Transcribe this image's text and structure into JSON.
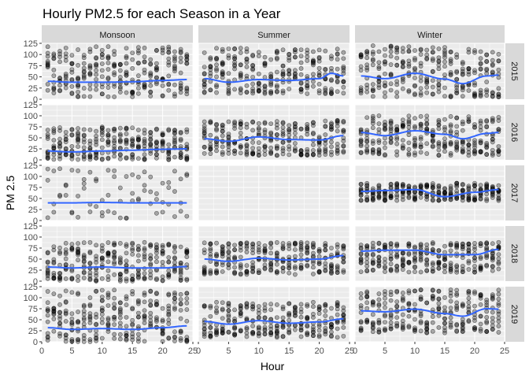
{
  "chart_data": {
    "type": "scatter",
    "title": "Hourly PM2.5 for each Season in a Year",
    "xlabel": "Hour",
    "ylabel": "PM 2.5",
    "xlim": [
      0,
      25
    ],
    "ylim": [
      0,
      125
    ],
    "x_ticks": [
      0,
      5,
      10,
      15,
      20,
      25
    ],
    "y_ticks": [
      0,
      25,
      50,
      75,
      100,
      125
    ],
    "x_tick_labels": [
      "0",
      "5",
      "10",
      "15",
      "20",
      "25"
    ],
    "y_tick_labels": [
      "0",
      "25",
      "50",
      "75",
      "100",
      "125"
    ],
    "column_facets": [
      "Monsoon",
      "Summer",
      "Winter"
    ],
    "row_facets": [
      "2015",
      "2016",
      "2017",
      "2018",
      "2019"
    ],
    "colors": {
      "panel_bg": "#ebebeb",
      "grid_major": "#ffffff",
      "strip_bg": "#d9d9d9",
      "point": "#000000",
      "smooth": "#3366ff"
    },
    "panels": [
      {
        "season": "Monsoon",
        "year": "2015",
        "has_data": true,
        "pm_range": [
          5,
          118
        ],
        "smooth_x": [
          1,
          5,
          10,
          15,
          20,
          24
        ],
        "smooth_y": [
          40,
          38,
          38,
          39,
          42,
          44
        ]
      },
      {
        "season": "Summer",
        "year": "2015",
        "has_data": true,
        "pm_range": [
          12,
          115
        ],
        "smooth_x": [
          1,
          5,
          10,
          15,
          20,
          22,
          24
        ],
        "smooth_y": [
          46,
          38,
          44,
          42,
          46,
          58,
          52
        ]
      },
      {
        "season": "Winter",
        "year": "2015",
        "has_data": true,
        "pm_range": [
          5,
          120
        ],
        "smooth_x": [
          1,
          5,
          10,
          15,
          18,
          22,
          24
        ],
        "smooth_y": [
          52,
          46,
          58,
          45,
          35,
          52,
          54
        ]
      },
      {
        "season": "Monsoon",
        "year": "2016",
        "has_data": true,
        "pm_range": [
          0,
          75
        ],
        "smooth_x": [
          1,
          5,
          10,
          15,
          20,
          24
        ],
        "smooth_y": [
          20,
          18,
          20,
          22,
          24,
          25
        ]
      },
      {
        "season": "Summer",
        "year": "2016",
        "has_data": true,
        "pm_range": [
          10,
          90
        ],
        "smooth_x": [
          1,
          5,
          10,
          15,
          20,
          24
        ],
        "smooth_y": [
          48,
          42,
          52,
          46,
          45,
          55
        ]
      },
      {
        "season": "Winter",
        "year": "2016",
        "has_data": true,
        "pm_range": [
          10,
          100
        ],
        "smooth_x": [
          1,
          5,
          10,
          15,
          18,
          22,
          24
        ],
        "smooth_y": [
          62,
          55,
          66,
          58,
          48,
          60,
          62
        ]
      },
      {
        "season": "Monsoon",
        "year": "2017",
        "has_data": true,
        "pm_range": [
          5,
          118
        ],
        "smooth_x": [
          1,
          5,
          10,
          15,
          20,
          24
        ],
        "smooth_y": [
          40,
          40,
          41,
          40,
          40,
          40
        ]
      },
      {
        "season": "Summer",
        "year": "2017",
        "has_data": false
      },
      {
        "season": "Winter",
        "year": "2017",
        "has_data": true,
        "pm_range": [
          45,
          85
        ],
        "smooth_x": [
          1,
          5,
          10,
          15,
          20,
          24
        ],
        "smooth_y": [
          66,
          68,
          70,
          54,
          64,
          70
        ]
      },
      {
        "season": "Monsoon",
        "year": "2018",
        "has_data": true,
        "pm_range": [
          0,
          88
        ],
        "smooth_x": [
          1,
          5,
          10,
          15,
          20,
          24
        ],
        "smooth_y": [
          32,
          30,
          32,
          30,
          30,
          33
        ]
      },
      {
        "season": "Summer",
        "year": "2018",
        "has_data": true,
        "pm_range": [
          15,
          88
        ],
        "smooth_x": [
          1,
          5,
          10,
          15,
          20,
          24
        ],
        "smooth_y": [
          50,
          45,
          52,
          48,
          50,
          58
        ]
      },
      {
        "season": "Winter",
        "year": "2018",
        "has_data": true,
        "pm_range": [
          20,
          88
        ],
        "smooth_x": [
          1,
          5,
          10,
          15,
          20,
          24
        ],
        "smooth_y": [
          68,
          70,
          70,
          60,
          60,
          72
        ]
      },
      {
        "season": "Monsoon",
        "year": "2019",
        "has_data": true,
        "pm_range": [
          0,
          118
        ],
        "smooth_x": [
          1,
          5,
          10,
          15,
          20,
          24
        ],
        "smooth_y": [
          32,
          28,
          30,
          28,
          32,
          36
        ]
      },
      {
        "season": "Summer",
        "year": "2019",
        "has_data": true,
        "pm_range": [
          10,
          90
        ],
        "smooth_x": [
          1,
          5,
          10,
          15,
          20,
          24
        ],
        "smooth_y": [
          46,
          40,
          48,
          42,
          45,
          52
        ]
      },
      {
        "season": "Winter",
        "year": "2019",
        "has_data": true,
        "pm_range": [
          20,
          118
        ],
        "smooth_x": [
          1,
          5,
          10,
          15,
          18,
          22,
          24
        ],
        "smooth_y": [
          70,
          68,
          74,
          64,
          58,
          75,
          74
        ]
      }
    ]
  }
}
